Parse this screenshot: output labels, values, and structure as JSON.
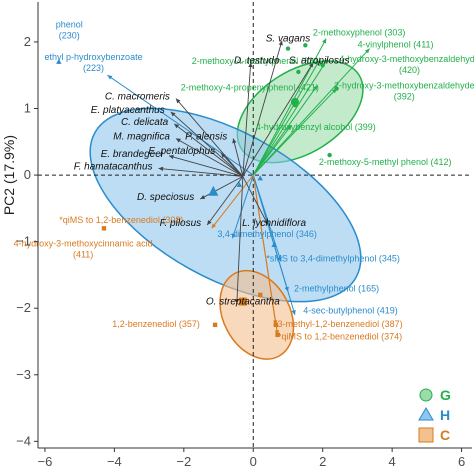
{
  "chart_data": {
    "type": "scatter",
    "title": "",
    "xlabel": "",
    "ylabel": "PC2 (17.9%)",
    "xlim": [
      -6.2,
      6.3
    ],
    "ylim": [
      -4.1,
      2.6
    ],
    "x_ticks": [
      -6,
      -4,
      -2,
      0,
      2,
      4,
      6
    ],
    "y_ticks": [
      -4,
      -3,
      -2,
      -1,
      0,
      1,
      2
    ],
    "grid": false,
    "zero_lines": "dashed",
    "legend_position": "bottom-right",
    "groups": [
      {
        "name": "G",
        "color": "#22b04b",
        "fill": "#9ddcaa",
        "marker": "circle",
        "ellipse": {
          "cx": 1.35,
          "cy": 0.95,
          "rx": 2.0,
          "ry": 0.62,
          "angle_deg": 32
        },
        "centroid": [
          1.2,
          1.1
        ]
      },
      {
        "name": "H",
        "color": "#2b8ccc",
        "fill": "#8fc6ec",
        "marker": "triangle",
        "ellipse": {
          "cx": -0.8,
          "cy": -0.45,
          "rx": 4.3,
          "ry": 1.1,
          "angle_deg": -29
        },
        "centroid": [
          -1.15,
          -0.25
        ]
      },
      {
        "name": "C",
        "color": "#d97a1e",
        "fill": "#f3c090",
        "marker": "square",
        "ellipse": {
          "cx": 0.1,
          "cy": -2.1,
          "rx": 1.35,
          "ry": 0.5,
          "angle_deg": -62
        },
        "centroid": [
          -0.3,
          -1.9
        ]
      }
    ],
    "variables": [
      {
        "label": "phenol\n(230)",
        "group": "H",
        "x": -5.6,
        "y": 1.7,
        "arrow": false,
        "lx": -5.3,
        "ly": 2.22
      },
      {
        "label": "ethyl p-hydroxybenzoate\n(223)",
        "group": "H",
        "x": -4.2,
        "y": 1.5,
        "arrow": true,
        "lx": -4.6,
        "ly": 1.73
      },
      {
        "label": "2-methoxyphenol (303)",
        "group": "G",
        "x": 2.1,
        "y": 2.05,
        "arrow": true,
        "lx": 3.05,
        "ly": 2.1
      },
      {
        "label": "4-vinylphenol (411)",
        "group": "G",
        "x": 3.35,
        "y": 1.9,
        "arrow": true,
        "lx": 4.1,
        "ly": 1.92
      },
      {
        "label": "2-methoxy-4-methylphenol (331)",
        "group": "G",
        "x": 1.9,
        "y": 1.72,
        "arrow": true,
        "lx": 0.1,
        "ly": 1.67
      },
      {
        "label": "4-hydroxy-3-methoxybenzaldehyde\n(420)",
        "group": "G",
        "x": 2.15,
        "y": 1.75,
        "arrow": true,
        "lx": 4.5,
        "ly": 1.7
      },
      {
        "label": "2-methoxy-4-propenylphenol (421)",
        "group": "G",
        "x": 1.85,
        "y": 1.35,
        "arrow": true,
        "lx": -0.1,
        "ly": 1.27
      },
      {
        "label": "2-hydroxy-3-methoxybenzaldehyde\n(392)",
        "group": "G",
        "x": 2.4,
        "y": 1.3,
        "arrow": true,
        "lx": 4.35,
        "ly": 1.3
      },
      {
        "label": "4-hydroxybenzyl alcohol (399)",
        "group": "G",
        "x": 1.1,
        "y": 0.75,
        "arrow": true,
        "lx": 1.8,
        "ly": 0.68
      },
      {
        "label": "2-methoxy-5-methyl phenol (412)",
        "group": "G",
        "x": 2.2,
        "y": 0.3,
        "arrow": false,
        "lx": 3.8,
        "ly": 0.15
      },
      {
        "label": "*qiMS to 1,2-benzenediol (308)",
        "group": "C",
        "x": -1.2,
        "y": -0.8,
        "arrow": true,
        "lx": -3.8,
        "ly": -0.72
      },
      {
        "label": "4-hydroxy-3-methoxycinnamic acid\n(411)",
        "group": "C",
        "x": -4.3,
        "y": -0.8,
        "arrow": false,
        "lx": -4.9,
        "ly": -1.07
      },
      {
        "label": "3,4-dimethylphenol (346)",
        "group": "H",
        "x": -0.6,
        "y": -0.95,
        "arrow": true,
        "lx": 0.4,
        "ly": -0.93
      },
      {
        "label": "*sMS to 3,4-dimethylphenol (345)",
        "group": "H",
        "x": 0.8,
        "y": -1.3,
        "arrow": true,
        "lx": 2.3,
        "ly": -1.3
      },
      {
        "label": "2-methylphenol (165)",
        "group": "H",
        "x": 1.0,
        "y": -1.75,
        "arrow": true,
        "lx": 2.4,
        "ly": -1.75
      },
      {
        "label": "4-sec-butylphenol (419)",
        "group": "H",
        "x": 1.2,
        "y": -2.1,
        "arrow": true,
        "lx": 2.8,
        "ly": -2.08
      },
      {
        "label": "1,2-benzenediol (357)",
        "group": "C",
        "x": -1.2,
        "y": -2.25,
        "arrow": false,
        "lx": -2.8,
        "ly": -2.28
      },
      {
        "label": "3-methyl-1,2-benzenediol (387)",
        "group": "C",
        "x": 0.65,
        "y": -2.25,
        "arrow": true,
        "lx": 2.5,
        "ly": -2.28
      },
      {
        "label": "*qiMS to 1,2-benzenediol (374)",
        "group": "C",
        "x": 0.7,
        "y": -2.4,
        "arrow": true,
        "lx": 2.5,
        "ly": -2.47
      }
    ],
    "species": [
      {
        "name": "S. vagans",
        "x": 1.0,
        "y": 2.05
      },
      {
        "name": "D. testudo",
        "x": 0.1,
        "y": 1.72
      },
      {
        "name": "S. atropilosus",
        "x": 1.9,
        "y": 1.72
      },
      {
        "name": "C. macromeris",
        "x": -2.4,
        "y": 1.18
      },
      {
        "name": "E. platyacanthus",
        "x": -2.55,
        "y": 0.98
      },
      {
        "name": "C. delicata",
        "x": -2.45,
        "y": 0.8
      },
      {
        "name": "M. magnifica",
        "x": -2.4,
        "y": 0.58
      },
      {
        "name": "P. alensis",
        "x": -0.75,
        "y": 0.58
      },
      {
        "name": "E. brandegeei",
        "x": -2.6,
        "y": 0.32
      },
      {
        "name": "E. pentalophus",
        "x": -1.1,
        "y": 0.36
      },
      {
        "name": "F. hamatacanthus",
        "x": -2.9,
        "y": 0.13
      },
      {
        "name": "D. speciosus",
        "x": -1.7,
        "y": -0.33
      },
      {
        "name": "F. pilosus",
        "x": -1.5,
        "y": -0.72
      },
      {
        "name": "L. lychnidiflora",
        "x": 0.6,
        "y": -0.72
      },
      {
        "name": "O. streptacantha",
        "x": -0.3,
        "y": -1.9
      }
    ],
    "species_origin": [
      -0.3,
      -0.02
    ],
    "observations": [
      {
        "group": "G",
        "x": 1.0,
        "y": 1.9
      },
      {
        "group": "G",
        "x": 1.3,
        "y": 1.55
      },
      {
        "group": "G",
        "x": 1.2,
        "y": 1.05
      },
      {
        "group": "G",
        "x": 2.0,
        "y": 1.65
      },
      {
        "group": "G",
        "x": 2.4,
        "y": 1.3
      },
      {
        "group": "G",
        "x": 1.5,
        "y": 1.95
      },
      {
        "group": "G",
        "x": 2.2,
        "y": 0.3
      },
      {
        "group": "H",
        "x": -5.6,
        "y": 1.7
      },
      {
        "group": "H",
        "x": -1.15,
        "y": -0.25
      },
      {
        "group": "H",
        "x": 0.2,
        "y": -0.05
      },
      {
        "group": "H",
        "x": -0.4,
        "y": -0.15
      },
      {
        "group": "H",
        "x": 0.6,
        "y": -1.05
      },
      {
        "group": "C",
        "x": -4.3,
        "y": -0.8
      },
      {
        "group": "C",
        "x": -0.3,
        "y": -1.9
      },
      {
        "group": "C",
        "x": 0.2,
        "y": -1.8
      },
      {
        "group": "C",
        "x": -1.1,
        "y": -2.25
      },
      {
        "group": "C",
        "x": 0.65,
        "y": -2.25
      },
      {
        "group": "C",
        "x": 0.7,
        "y": -2.4
      }
    ]
  }
}
